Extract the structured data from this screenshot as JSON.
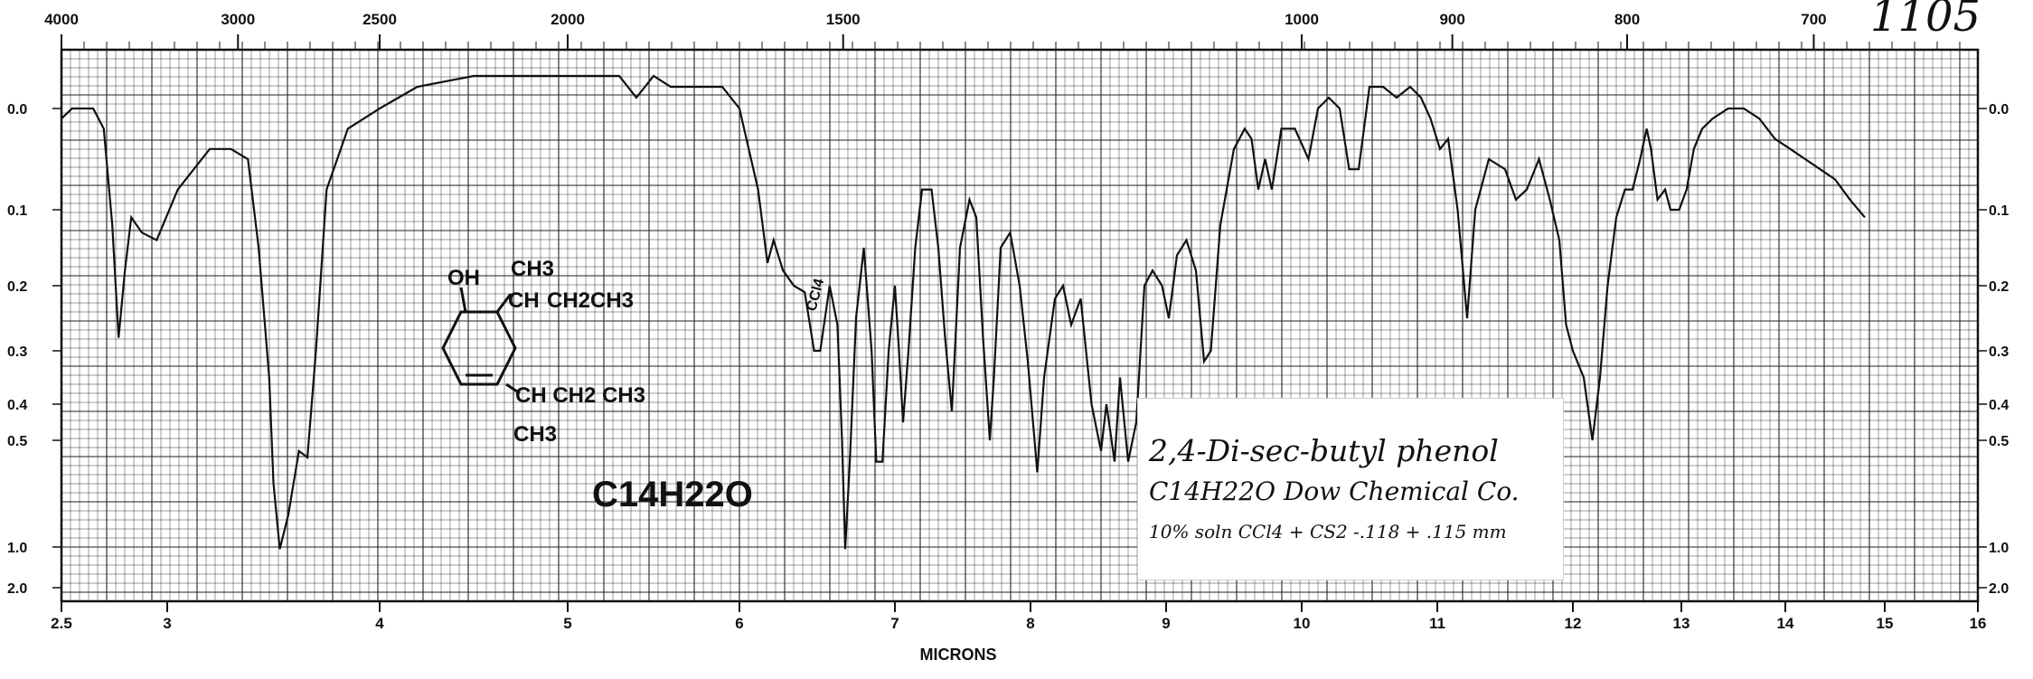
{
  "catalog_number": "1105",
  "chart_data": {
    "type": "line",
    "title": "2,4-Di-sec-butyl phenol",
    "xlabel": "MICRONS",
    "ylabel": "",
    "x_unit": "microns",
    "xlim": [
      2.5,
      16
    ],
    "top_axis_ticks": [
      {
        "label": "4000",
        "micron": 2.5
      },
      {
        "label": "3000",
        "micron": 3.333
      },
      {
        "label": "2500",
        "micron": 4.0
      },
      {
        "label": "2000",
        "micron": 5.0
      },
      {
        "label": "1500",
        "micron": 6.667
      },
      {
        "label": "1000",
        "micron": 10.0
      },
      {
        "label": "900",
        "micron": 11.111
      },
      {
        "label": "800",
        "micron": 12.5
      },
      {
        "label": "700",
        "micron": 14.286
      }
    ],
    "bottom_axis_ticks": [
      {
        "label": "2.5",
        "micron": 2.5
      },
      {
        "label": "3",
        "micron": 3
      },
      {
        "label": "4",
        "micron": 4
      },
      {
        "label": "5",
        "micron": 5
      },
      {
        "label": "6",
        "micron": 6
      },
      {
        "label": "7",
        "micron": 7
      },
      {
        "label": "8",
        "micron": 8
      },
      {
        "label": "9",
        "micron": 9
      },
      {
        "label": "10",
        "micron": 10
      },
      {
        "label": "11",
        "micron": 11
      },
      {
        "label": "12",
        "micron": 12
      },
      {
        "label": "13",
        "micron": 13
      },
      {
        "label": "14",
        "micron": 14
      },
      {
        "label": "15",
        "micron": 15
      },
      {
        "label": "16",
        "micron": 16
      }
    ],
    "y_axis_ticks": [
      {
        "label": "0.0",
        "value": 0.0
      },
      {
        "label": "0.1",
        "value": 0.1
      },
      {
        "label": "0.2",
        "value": 0.2
      },
      {
        "label": "0.3",
        "value": 0.3
      },
      {
        "label": "0.4",
        "value": 0.4
      },
      {
        "label": "0.5",
        "value": 0.5
      },
      {
        "label": "1.0",
        "value": 1.0
      },
      {
        "label": "2.0",
        "value": 2.0
      }
    ],
    "grid": true,
    "series": [
      {
        "points": [
          [
            2.5,
            0.01
          ],
          [
            2.55,
            0.0
          ],
          [
            2.65,
            0.0
          ],
          [
            2.7,
            0.02
          ],
          [
            2.74,
            0.12
          ],
          [
            2.77,
            0.28
          ],
          [
            2.8,
            0.18
          ],
          [
            2.83,
            0.11
          ],
          [
            2.88,
            0.13
          ],
          [
            2.95,
            0.14
          ],
          [
            3.05,
            0.08
          ],
          [
            3.2,
            0.04
          ],
          [
            3.3,
            0.04
          ],
          [
            3.38,
            0.05
          ],
          [
            3.43,
            0.15
          ],
          [
            3.48,
            0.35
          ],
          [
            3.5,
            0.7
          ],
          [
            3.53,
            1.05
          ],
          [
            3.57,
            0.85
          ],
          [
            3.62,
            0.55
          ],
          [
            3.66,
            0.58
          ],
          [
            3.7,
            0.3
          ],
          [
            3.75,
            0.08
          ],
          [
            3.85,
            0.02
          ],
          [
            4.0,
            0.0
          ],
          [
            4.2,
            -0.02
          ],
          [
            4.5,
            -0.03
          ],
          [
            5.0,
            -0.03
          ],
          [
            5.3,
            -0.03
          ],
          [
            5.4,
            -0.01
          ],
          [
            5.5,
            -0.03
          ],
          [
            5.6,
            -0.02
          ],
          [
            5.7,
            -0.02
          ],
          [
            5.9,
            -0.02
          ],
          [
            6.0,
            0.0
          ],
          [
            6.12,
            0.08
          ],
          [
            6.18,
            0.17
          ],
          [
            6.22,
            0.14
          ],
          [
            6.28,
            0.18
          ],
          [
            6.35,
            0.2
          ],
          [
            6.42,
            0.21
          ],
          [
            6.48,
            0.3
          ],
          [
            6.52,
            0.3
          ],
          [
            6.58,
            0.2
          ],
          [
            6.63,
            0.26
          ],
          [
            6.66,
            0.5
          ],
          [
            6.68,
            1.05
          ],
          [
            6.71,
            0.6
          ],
          [
            6.75,
            0.25
          ],
          [
            6.8,
            0.15
          ],
          [
            6.85,
            0.3
          ],
          [
            6.88,
            0.6
          ],
          [
            6.92,
            0.6
          ],
          [
            6.96,
            0.3
          ],
          [
            7.0,
            0.2
          ],
          [
            7.03,
            0.3
          ],
          [
            7.06,
            0.45
          ],
          [
            7.1,
            0.3
          ],
          [
            7.15,
            0.15
          ],
          [
            7.2,
            0.08
          ],
          [
            7.27,
            0.08
          ],
          [
            7.32,
            0.15
          ],
          [
            7.37,
            0.28
          ],
          [
            7.42,
            0.42
          ],
          [
            7.48,
            0.15
          ],
          [
            7.55,
            0.09
          ],
          [
            7.6,
            0.11
          ],
          [
            7.65,
            0.28
          ],
          [
            7.7,
            0.5
          ],
          [
            7.73,
            0.35
          ],
          [
            7.78,
            0.15
          ],
          [
            7.85,
            0.13
          ],
          [
            7.92,
            0.2
          ],
          [
            7.98,
            0.32
          ],
          [
            8.05,
            0.65
          ],
          [
            8.1,
            0.35
          ],
          [
            8.18,
            0.22
          ],
          [
            8.24,
            0.2
          ],
          [
            8.3,
            0.26
          ],
          [
            8.37,
            0.22
          ],
          [
            8.45,
            0.4
          ],
          [
            8.52,
            0.55
          ],
          [
            8.56,
            0.4
          ],
          [
            8.62,
            0.6
          ],
          [
            8.66,
            0.35
          ],
          [
            8.72,
            0.6
          ],
          [
            8.78,
            0.45
          ],
          [
            8.84,
            0.2
          ],
          [
            8.9,
            0.18
          ],
          [
            8.97,
            0.2
          ],
          [
            9.02,
            0.25
          ],
          [
            9.08,
            0.16
          ],
          [
            9.15,
            0.14
          ],
          [
            9.22,
            0.18
          ],
          [
            9.28,
            0.32
          ],
          [
            9.33,
            0.3
          ],
          [
            9.4,
            0.12
          ],
          [
            9.5,
            0.04
          ],
          [
            9.58,
            0.02
          ],
          [
            9.63,
            0.03
          ],
          [
            9.68,
            0.08
          ],
          [
            9.73,
            0.05
          ],
          [
            9.78,
            0.08
          ],
          [
            9.85,
            0.02
          ],
          [
            9.95,
            0.02
          ],
          [
            10.05,
            0.05
          ],
          [
            10.12,
            0.0
          ],
          [
            10.2,
            -0.01
          ],
          [
            10.28,
            0.0
          ],
          [
            10.35,
            0.06
          ],
          [
            10.42,
            0.06
          ],
          [
            10.5,
            -0.02
          ],
          [
            10.6,
            -0.02
          ],
          [
            10.7,
            -0.01
          ],
          [
            10.8,
            -0.02
          ],
          [
            10.88,
            -0.01
          ],
          [
            10.95,
            0.01
          ],
          [
            11.02,
            0.04
          ],
          [
            11.08,
            0.03
          ],
          [
            11.15,
            0.1
          ],
          [
            11.22,
            0.25
          ],
          [
            11.28,
            0.1
          ],
          [
            11.38,
            0.05
          ],
          [
            11.5,
            0.06
          ],
          [
            11.58,
            0.09
          ],
          [
            11.66,
            0.08
          ],
          [
            11.75,
            0.05
          ],
          [
            11.83,
            0.09
          ],
          [
            11.9,
            0.14
          ],
          [
            11.95,
            0.26
          ],
          [
            12.0,
            0.3
          ],
          [
            12.1,
            0.35
          ],
          [
            12.18,
            0.5
          ],
          [
            12.25,
            0.35
          ],
          [
            12.32,
            0.2
          ],
          [
            12.4,
            0.11
          ],
          [
            12.48,
            0.08
          ],
          [
            12.55,
            0.08
          ],
          [
            12.62,
            0.05
          ],
          [
            12.68,
            0.02
          ],
          [
            12.72,
            0.04
          ],
          [
            12.78,
            0.09
          ],
          [
            12.85,
            0.08
          ],
          [
            12.9,
            0.1
          ],
          [
            12.98,
            0.1
          ],
          [
            13.05,
            0.08
          ],
          [
            13.12,
            0.04
          ],
          [
            13.2,
            0.02
          ],
          [
            13.3,
            0.01
          ],
          [
            13.45,
            0.0
          ],
          [
            13.6,
            0.0
          ],
          [
            13.75,
            0.01
          ],
          [
            13.9,
            0.03
          ],
          [
            14.05,
            0.04
          ],
          [
            14.2,
            0.05
          ],
          [
            14.35,
            0.06
          ],
          [
            14.5,
            0.07
          ],
          [
            14.65,
            0.09
          ],
          [
            14.8,
            0.11
          ]
        ]
      }
    ],
    "annotations": {
      "structure": {
        "oh": "OH",
        "ch": "CH",
        "ch3_top": "CH3",
        "ch2ch3_top": "CH2CH3",
        "ring_label": "CH CH2 CH3",
        "ch3_bottom": "CH3"
      },
      "formula_left": "C14H22O",
      "margin_mark": "CCl4",
      "note_lines": [
        "2,4-Di-sec-butyl phenol",
        "C14H22O   Dow Chemical Co.",
        "10% soln CCl4 + CS2 -.118 + .115 mm"
      ]
    }
  }
}
